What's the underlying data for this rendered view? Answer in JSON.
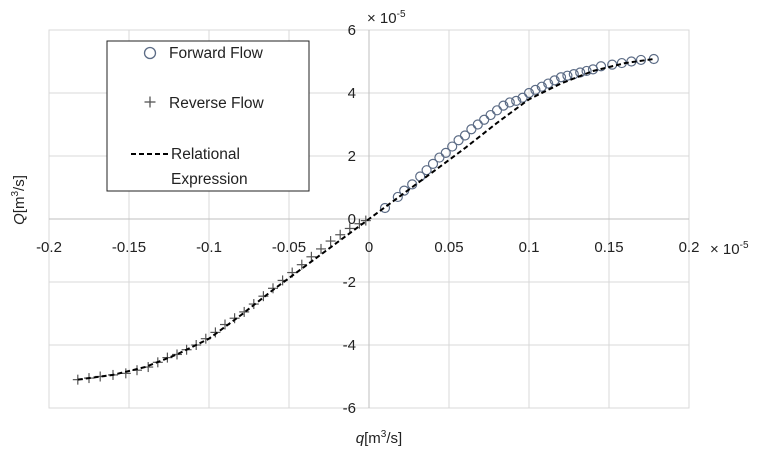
{
  "chart_data": {
    "type": "scatter",
    "xlabel": {
      "italic": "q",
      "rest": "[m",
      "sup": "3",
      "tail": "/s]"
    },
    "ylabel": {
      "italic": "Q",
      "rest": "[m",
      "sup": "3",
      "tail": "/s]"
    },
    "x_exponent_label": {
      "base": "× 10",
      "sup": "-5"
    },
    "y_exponent_label": {
      "base": "× 10",
      "sup": "-5"
    },
    "xlim": [
      -0.2,
      0.2
    ],
    "ylim": [
      -6,
      6
    ],
    "x_ticks": [
      -0.2,
      -0.15,
      -0.1,
      -0.05,
      0,
      0.05,
      0.1,
      0.15,
      0.2
    ],
    "x_tick_labels": [
      "-0.2",
      "-0.15",
      "-0.1",
      "-0.05",
      "0",
      "0.05",
      "0.1",
      "0.15",
      "0.2"
    ],
    "y_ticks": [
      -6,
      -4,
      -2,
      0,
      2,
      4,
      6
    ],
    "y_tick_labels": [
      "-6",
      "-4",
      "-2",
      "0",
      "2",
      "4",
      "6"
    ],
    "grid": {
      "horizontal": true,
      "vertical": true
    },
    "legend": {
      "placement": "top-left",
      "entries": [
        {
          "key": "forward",
          "label_lines": [
            "Forward Flow"
          ],
          "marker": "circle"
        },
        {
          "key": "reverse",
          "label_lines": [
            "Reverse Flow"
          ],
          "marker": "plus"
        },
        {
          "key": "relational",
          "label_lines": [
            "Relational",
            "Expression"
          ],
          "marker": "dashed-line"
        }
      ]
    },
    "series": [
      {
        "key": "forward",
        "marker": "circle",
        "color": "#5b6b85",
        "x": [
          0.01,
          0.018,
          0.022,
          0.027,
          0.032,
          0.036,
          0.04,
          0.044,
          0.048,
          0.052,
          0.056,
          0.06,
          0.064,
          0.068,
          0.072,
          0.076,
          0.08,
          0.084,
          0.088,
          0.092,
          0.096,
          0.1,
          0.104,
          0.108,
          0.112,
          0.116,
          0.12,
          0.124,
          0.128,
          0.132,
          0.136,
          0.14,
          0.145,
          0.152,
          0.158,
          0.164,
          0.17,
          0.178
        ],
        "y": [
          0.35,
          0.7,
          0.9,
          1.1,
          1.35,
          1.55,
          1.75,
          1.95,
          2.1,
          2.3,
          2.5,
          2.65,
          2.85,
          3.0,
          3.15,
          3.3,
          3.45,
          3.6,
          3.7,
          3.75,
          3.85,
          4.0,
          4.1,
          4.2,
          4.3,
          4.4,
          4.5,
          4.55,
          4.6,
          4.65,
          4.7,
          4.75,
          4.85,
          4.9,
          4.95,
          5.0,
          5.05,
          5.08
        ]
      },
      {
        "key": "reverse",
        "marker": "plus",
        "color": "#555555",
        "x": [
          -0.182,
          -0.175,
          -0.168,
          -0.16,
          -0.152,
          -0.145,
          -0.138,
          -0.132,
          -0.126,
          -0.12,
          -0.114,
          -0.108,
          -0.102,
          -0.096,
          -0.09,
          -0.084,
          -0.078,
          -0.072,
          -0.066,
          -0.06,
          -0.054,
          -0.048,
          -0.042,
          -0.036,
          -0.03,
          -0.024,
          -0.018,
          -0.012,
          -0.006,
          -0.002
        ],
        "y": [
          -5.1,
          -5.05,
          -5.0,
          -4.95,
          -4.9,
          -4.8,
          -4.7,
          -4.55,
          -4.4,
          -4.3,
          -4.15,
          -4.0,
          -3.8,
          -3.6,
          -3.35,
          -3.15,
          -2.95,
          -2.7,
          -2.45,
          -2.2,
          -1.95,
          -1.7,
          -1.45,
          -1.2,
          -0.95,
          -0.7,
          -0.5,
          -0.3,
          -0.15,
          -0.05
        ]
      },
      {
        "key": "relational",
        "marker": "dashed-line",
        "color": "#000000",
        "x": [
          -0.182,
          -0.16,
          -0.14,
          -0.12,
          -0.1,
          -0.08,
          -0.06,
          -0.04,
          -0.02,
          0,
          0.02,
          0.04,
          0.06,
          0.08,
          0.1,
          0.12,
          0.14,
          0.16,
          0.178
        ],
        "y": [
          -5.1,
          -4.95,
          -4.7,
          -4.3,
          -3.8,
          -3.05,
          -2.25,
          -1.5,
          -0.75,
          0.0,
          0.75,
          1.5,
          2.25,
          3.05,
          3.8,
          4.3,
          4.7,
          4.95,
          5.08
        ]
      }
    ]
  }
}
